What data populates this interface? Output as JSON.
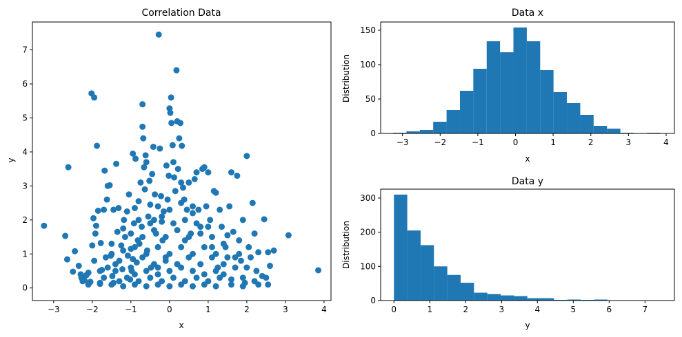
{
  "colors": {
    "primary": "#1f77b4"
  },
  "chart_data": [
    {
      "type": "scatter",
      "title": "Correlation Data",
      "xlabel": "x",
      "ylabel": "y",
      "xlim": [
        -3.55,
        4.18
      ],
      "ylim": [
        -0.37,
        7.82
      ],
      "xticks": [
        -3,
        -2,
        -1,
        0,
        1,
        2,
        3,
        4
      ],
      "yticks": [
        0,
        1,
        2,
        3,
        4,
        5,
        6,
        7
      ],
      "points": [
        [
          -3.25,
          1.83
        ],
        [
          -2.7,
          1.53
        ],
        [
          -2.65,
          0.84
        ],
        [
          -2.62,
          3.55
        ],
        [
          -2.5,
          0.48
        ],
        [
          -2.45,
          1.08
        ],
        [
          -2.35,
          0.65
        ],
        [
          -2.28,
          0.3
        ],
        [
          -2.25,
          0.2
        ],
        [
          -2.2,
          0.22
        ],
        [
          -2.15,
          0.38
        ],
        [
          -2.1,
          0.45
        ],
        [
          -2.05,
          0.18
        ],
        [
          -2.02,
          5.72
        ],
        [
          -2.0,
          1.25
        ],
        [
          -1.97,
          2.05
        ],
        [
          -1.95,
          5.6
        ],
        [
          -1.92,
          1.6
        ],
        [
          -1.9,
          1.83
        ],
        [
          -1.88,
          4.18
        ],
        [
          -1.85,
          2.27
        ],
        [
          -1.8,
          0.12
        ],
        [
          -1.78,
          1.32
        ],
        [
          -1.75,
          0.53
        ],
        [
          -1.7,
          2.3
        ],
        [
          -1.68,
          3.45
        ],
        [
          -1.65,
          0.9
        ],
        [
          -1.62,
          2.6
        ],
        [
          -1.6,
          3.0
        ],
        [
          -1.55,
          3.02
        ],
        [
          -1.52,
          0.95
        ],
        [
          -1.5,
          1.3
        ],
        [
          -1.48,
          0.35
        ],
        [
          -1.45,
          2.3
        ],
        [
          -1.4,
          0.7
        ],
        [
          -1.38,
          3.65
        ],
        [
          -1.35,
          1.65
        ],
        [
          -1.32,
          2.35
        ],
        [
          -1.3,
          0.2
        ],
        [
          -1.25,
          1.25
        ],
        [
          -1.22,
          0.55
        ],
        [
          -1.2,
          1.75
        ],
        [
          -1.18,
          2.0
        ],
        [
          -1.15,
          1.5
        ],
        [
          -1.1,
          2.25
        ],
        [
          -1.08,
          0.95
        ],
        [
          -1.05,
          2.75
        ],
        [
          -1.02,
          0.25
        ],
        [
          -1.0,
          1.15
        ],
        [
          -0.98,
          0.5
        ],
        [
          -0.95,
          3.95
        ],
        [
          -0.92,
          1.9
        ],
        [
          -0.9,
          2.35
        ],
        [
          -0.88,
          3.8
        ],
        [
          -0.85,
          0.75
        ],
        [
          -0.82,
          1.4
        ],
        [
          -0.8,
          2.55
        ],
        [
          -0.78,
          1.3
        ],
        [
          -0.75,
          3.1
        ],
        [
          -0.72,
          1.8
        ],
        [
          -0.7,
          5.4
        ],
        [
          -0.7,
          4.74
        ],
        [
          -0.68,
          4.4
        ],
        [
          -0.66,
          3.55
        ],
        [
          -0.64,
          2.9
        ],
        [
          -0.62,
          3.9
        ],
        [
          -0.6,
          3.7
        ],
        [
          -0.58,
          1.1
        ],
        [
          -0.55,
          2.1
        ],
        [
          -0.52,
          3.15
        ],
        [
          -0.5,
          2.45
        ],
        [
          -0.48,
          0.6
        ],
        [
          -0.45,
          3.35
        ],
        [
          -0.42,
          4.15
        ],
        [
          -0.4,
          2.0
        ],
        [
          -0.38,
          2.75
        ],
        [
          -0.35,
          1.6
        ],
        [
          -0.3,
          0.4
        ],
        [
          -0.28,
          7.45
        ],
        [
          -0.25,
          4.1
        ],
        [
          -0.22,
          2.7
        ],
        [
          -0.2,
          1.95
        ],
        [
          -0.18,
          1.4
        ],
        [
          -0.15,
          2.25
        ],
        [
          -0.1,
          0.8
        ],
        [
          -0.08,
          3.6
        ],
        [
          -0.05,
          2.6
        ],
        [
          -0.02,
          3.3
        ],
        [
          0.0,
          5.28
        ],
        [
          0.02,
          5.15
        ],
        [
          0.04,
          5.6
        ],
        [
          0.05,
          4.85
        ],
        [
          0.08,
          4.2
        ],
        [
          0.1,
          3.7
        ],
        [
          0.12,
          3.25
        ],
        [
          0.15,
          2.85
        ],
        [
          0.18,
          6.4
        ],
        [
          0.2,
          4.9
        ],
        [
          0.22,
          3.5
        ],
        [
          0.25,
          4.4
        ],
        [
          0.28,
          4.85
        ],
        [
          0.3,
          3.1
        ],
        [
          0.32,
          4.18
        ],
        [
          0.35,
          2.95
        ],
        [
          0.38,
          2.6
        ],
        [
          0.4,
          1.4
        ],
        [
          0.45,
          2.3
        ],
        [
          0.5,
          3.1
        ],
        [
          0.55,
          1.6
        ],
        [
          0.6,
          2.4
        ],
        [
          0.65,
          3.2
        ],
        [
          0.7,
          3.4
        ],
        [
          0.75,
          2.3
        ],
        [
          0.8,
          1.8
        ],
        [
          0.85,
          3.5
        ],
        [
          0.9,
          3.55
        ],
        [
          0.95,
          2.4
        ],
        [
          1.0,
          3.4
        ],
        [
          1.05,
          2.0
        ],
        [
          1.1,
          1.2
        ],
        [
          1.15,
          2.85
        ],
        [
          1.2,
          2.8
        ],
        [
          1.25,
          0.6
        ],
        [
          1.3,
          2.3
        ],
        [
          1.35,
          1.8
        ],
        [
          1.4,
          0.4
        ],
        [
          1.45,
          1.2
        ],
        [
          1.5,
          1.55
        ],
        [
          1.55,
          2.4
        ],
        [
          1.6,
          3.4
        ],
        [
          1.65,
          1.65
        ],
        [
          1.7,
          0.9
        ],
        [
          1.75,
          3.3
        ],
        [
          1.8,
          1.4
        ],
        [
          1.85,
          0.8
        ],
        [
          1.9,
          2.0
        ],
        [
          1.95,
          0.15
        ],
        [
          2.0,
          3.88
        ],
        [
          2.05,
          1.2
        ],
        [
          2.1,
          0.9
        ],
        [
          2.15,
          2.5
        ],
        [
          2.2,
          1.6
        ],
        [
          2.25,
          0.5
        ],
        [
          2.3,
          1.05
        ],
        [
          2.4,
          0.35
        ],
        [
          2.45,
          2.02
        ],
        [
          2.5,
          0.3
        ],
        [
          2.55,
          1.05
        ],
        [
          2.6,
          0.65
        ],
        [
          2.7,
          1.1
        ],
        [
          3.08,
          1.55
        ],
        [
          3.85,
          0.52
        ],
        [
          2.55,
          0.1
        ],
        [
          2.3,
          0.1
        ],
        [
          1.9,
          0.05
        ],
        [
          1.6,
          0.1
        ],
        [
          1.2,
          0.05
        ],
        [
          0.9,
          0.1
        ],
        [
          0.6,
          0.05
        ],
        [
          0.3,
          0.1
        ],
        [
          0.0,
          0.05
        ],
        [
          -0.3,
          0.1
        ],
        [
          -0.6,
          0.05
        ],
        [
          -0.9,
          0.1
        ],
        [
          -1.2,
          0.05
        ],
        [
          -1.5,
          0.1
        ],
        [
          -1.8,
          0.15
        ],
        [
          -2.1,
          0.1
        ],
        [
          -2.3,
          0.4
        ],
        [
          -1.95,
          0.8
        ],
        [
          -1.7,
          0.3
        ],
        [
          -1.4,
          0.5
        ],
        [
          -1.1,
          0.3
        ],
        [
          -0.8,
          0.2
        ],
        [
          -0.5,
          0.3
        ],
        [
          -0.2,
          0.2
        ],
        [
          0.1,
          0.3
        ],
        [
          0.4,
          0.2
        ],
        [
          0.7,
          0.3
        ],
        [
          1.0,
          0.2
        ],
        [
          1.3,
          0.3
        ],
        [
          1.6,
          0.25
        ],
        [
          1.9,
          0.3
        ],
        [
          2.2,
          0.2
        ],
        [
          -1.6,
          0.6
        ],
        [
          -1.3,
          0.8
        ],
        [
          -1.0,
          0.6
        ],
        [
          -0.7,
          0.9
        ],
        [
          -0.4,
          0.7
        ],
        [
          -0.1,
          0.9
        ],
        [
          0.2,
          0.7
        ],
        [
          0.5,
          0.9
        ],
        [
          0.8,
          0.7
        ],
        [
          1.1,
          0.9
        ],
        [
          1.4,
          0.7
        ],
        [
          1.7,
          0.6
        ],
        [
          2.0,
          0.6
        ],
        [
          -1.5,
          1.0
        ],
        [
          -1.2,
          1.1
        ],
        [
          -0.9,
          1.2
        ],
        [
          -0.6,
          1.0
        ],
        [
          -0.3,
          1.2
        ],
        [
          0.0,
          1.0
        ],
        [
          0.3,
          1.2
        ],
        [
          0.6,
          1.0
        ],
        [
          0.9,
          1.2
        ],
        [
          1.2,
          1.0
        ],
        [
          1.5,
          0.9
        ],
        [
          1.8,
          1.0
        ],
        [
          -1.0,
          1.6
        ],
        [
          -0.7,
          1.5
        ],
        [
          -0.4,
          1.7
        ],
        [
          -0.1,
          1.5
        ],
        [
          0.2,
          1.7
        ],
        [
          0.5,
          1.5
        ],
        [
          0.8,
          1.6
        ],
        [
          1.1,
          1.5
        ],
        [
          1.4,
          1.3
        ],
        [
          -0.8,
          2.0
        ],
        [
          -0.5,
          1.9
        ],
        [
          -0.2,
          2.1
        ],
        [
          0.1,
          1.9
        ],
        [
          0.4,
          2.0
        ],
        [
          0.7,
          1.9
        ],
        [
          1.0,
          1.8
        ],
        [
          -0.3,
          2.4
        ],
        [
          0.0,
          2.3
        ],
        [
          0.3,
          2.5
        ],
        [
          0.6,
          2.2
        ],
        [
          -0.9,
          0.4
        ],
        [
          -0.6,
          0.5
        ],
        [
          -0.3,
          0.6
        ],
        [
          0.0,
          0.5
        ],
        [
          0.3,
          0.6
        ],
        [
          0.6,
          0.5
        ],
        [
          0.9,
          0.4
        ],
        [
          1.2,
          0.5
        ],
        [
          -1.8,
          0.5
        ],
        [
          -1.45,
          0.15
        ],
        [
          -0.95,
          0.85
        ]
      ]
    },
    {
      "type": "bar",
      "title": "Data x",
      "xlabel": "x",
      "ylabel": "Distribution",
      "xlim": [
        -3.58,
        4.22
      ],
      "ylim": [
        0,
        162
      ],
      "xticks": [
        -3,
        -2,
        -1,
        0,
        1,
        2,
        3,
        4
      ],
      "yticks": [
        0,
        50,
        100,
        150
      ],
      "bin_edges": [
        -3.25,
        -2.895,
        -2.54,
        -2.185,
        -1.83,
        -1.475,
        -1.12,
        -0.765,
        -0.41,
        -0.055,
        0.3,
        0.655,
        1.01,
        1.365,
        1.72,
        2.075,
        2.43,
        2.785,
        3.14,
        3.495,
        3.85
      ],
      "values": [
        1,
        3,
        5,
        17,
        34,
        62,
        94,
        134,
        118,
        154,
        134,
        92,
        60,
        44,
        27,
        11,
        7,
        1,
        0,
        1
      ]
    },
    {
      "type": "bar",
      "title": "Data y",
      "xlabel": "y",
      "ylabel": "Distribution",
      "xlim": [
        -0.37,
        7.82
      ],
      "ylim": [
        0,
        326
      ],
      "xticks": [
        0,
        1,
        2,
        3,
        4,
        5,
        6,
        7
      ],
      "yticks": [
        0,
        100,
        200,
        300
      ],
      "bin_edges": [
        0.0,
        0.372,
        0.744,
        1.116,
        1.488,
        1.86,
        2.232,
        2.604,
        2.976,
        3.348,
        3.72,
        4.092,
        4.464,
        4.836,
        5.208,
        5.58,
        5.952,
        6.324,
        6.696,
        7.068,
        7.44
      ],
      "values": [
        310,
        205,
        162,
        100,
        75,
        52,
        23,
        19,
        15,
        13,
        7,
        7,
        2,
        3,
        2,
        3,
        0,
        1,
        0,
        1
      ]
    }
  ]
}
